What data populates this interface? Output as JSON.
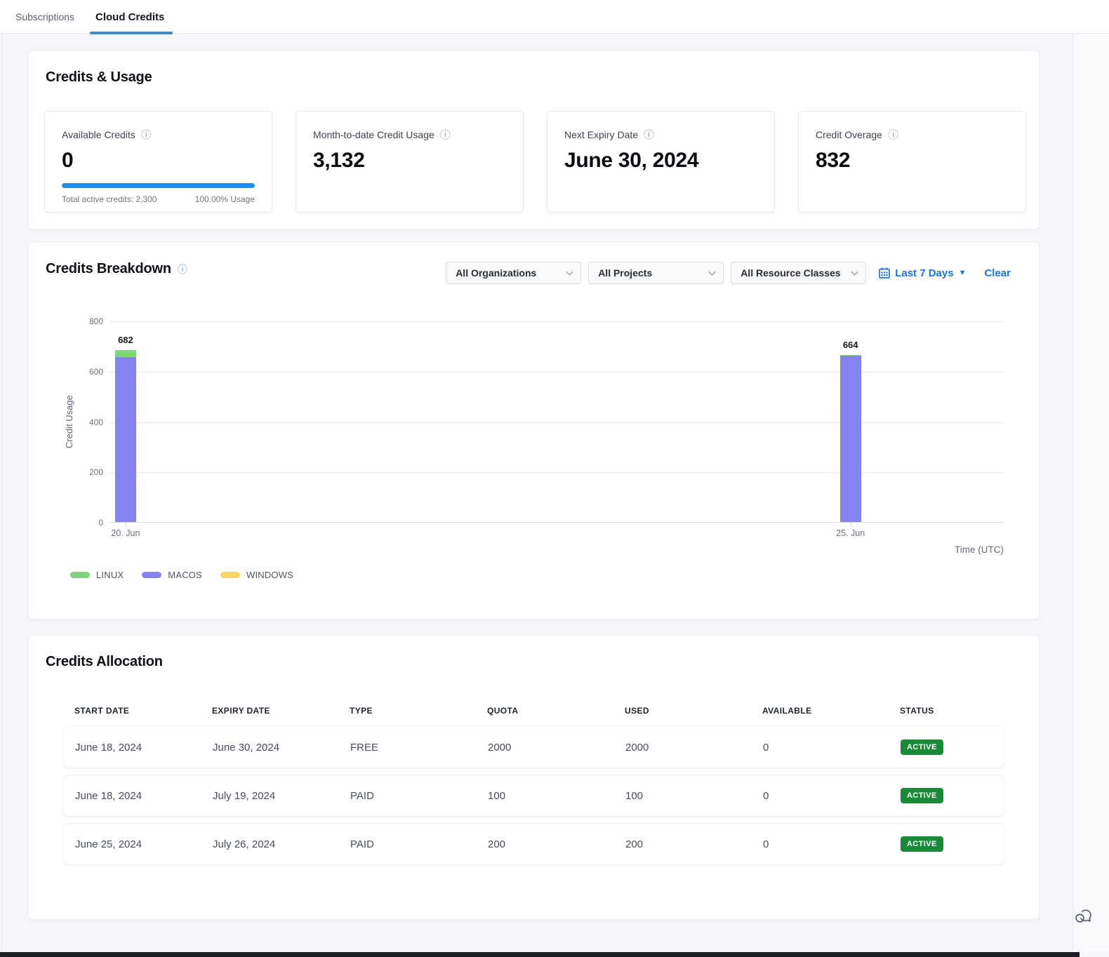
{
  "tabs": [
    {
      "label": "Subscriptions",
      "active": false
    },
    {
      "label": "Cloud Credits",
      "active": true
    }
  ],
  "credits_usage": {
    "title": "Credits & Usage",
    "cards": [
      {
        "label": "Available Credits",
        "value": "0",
        "progress_percent": 100,
        "footer_left": "Total active credits: 2,300",
        "footer_right": "100.00% Usage"
      },
      {
        "label": "Month-to-date Credit Usage",
        "value": "3,132"
      },
      {
        "label": "Next Expiry Date",
        "value": "June 30, 2024"
      },
      {
        "label": "Credit Overage",
        "value": "832"
      }
    ]
  },
  "credits_breakdown": {
    "title": "Credits Breakdown",
    "filters": {
      "organizations": "All Organizations",
      "projects": "All Projects",
      "resource_classes": "All Resource Classes",
      "date_range": "Last 7 Days",
      "clear_label": "Clear"
    }
  },
  "chart_data": {
    "type": "bar",
    "stacked": true,
    "ylabel": "Credit Usage",
    "xlabel": "Time (UTC)",
    "ylim": [
      0,
      800
    ],
    "yticks": [
      0,
      200,
      400,
      600,
      800
    ],
    "grid": true,
    "legend_position": "bottom-left",
    "categories": [
      "20. Jun",
      "25. Jun"
    ],
    "bar_positions_pct": [
      1.8,
      82.8
    ],
    "totals": [
      682,
      664
    ],
    "series": [
      {
        "name": "LINUX",
        "color": "#7ed37d",
        "values": [
          27,
          4
        ]
      },
      {
        "name": "MACOS",
        "color": "#8583f2",
        "values": [
          655,
          660
        ]
      },
      {
        "name": "WINDOWS",
        "color": "#fbd667",
        "values": [
          0,
          0
        ]
      }
    ]
  },
  "credits_allocation": {
    "title": "Credits Allocation",
    "columns": [
      "START DATE",
      "EXPIRY DATE",
      "TYPE",
      "QUOTA",
      "USED",
      "AVAILABLE",
      "STATUS"
    ],
    "rows": [
      {
        "start_date": "June 18, 2024",
        "expiry_date": "June 30, 2024",
        "type": "FREE",
        "quota": "2000",
        "used": "2000",
        "available": "0",
        "status": "ACTIVE"
      },
      {
        "start_date": "June 18, 2024",
        "expiry_date": "July 19, 2024",
        "type": "PAID",
        "quota": "100",
        "used": "100",
        "available": "0",
        "status": "ACTIVE"
      },
      {
        "start_date": "June 25, 2024",
        "expiry_date": "July 26, 2024",
        "type": "PAID",
        "quota": "200",
        "used": "200",
        "available": "0",
        "status": "ACTIVE"
      }
    ]
  },
  "colors": {
    "accent_blue": "#1a73e8",
    "progress_blue": "#1e8ce8",
    "tab_underline": "#3b8bd0",
    "badge_green": "#188a38",
    "linux_green": "#7ed37d",
    "macos_purple": "#8583f2",
    "windows_yellow": "#fbd667"
  }
}
